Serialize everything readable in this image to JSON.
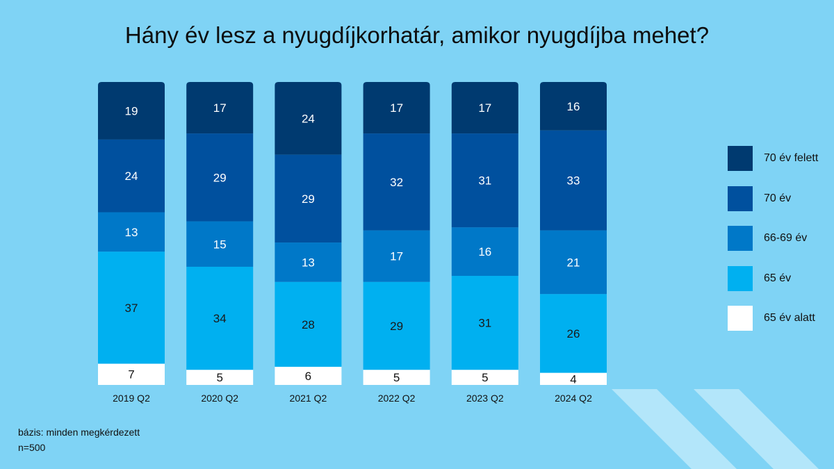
{
  "title": "Hány év lesz a nyugdíjkorhatár, amikor nyugdíjba mehet?",
  "footer": {
    "base": "bázis: minden megkérdezett",
    "n": "n=500"
  },
  "colors": {
    "background": "#7fd3f5",
    "decoration": "#b3e6fa"
  },
  "chart_data": {
    "type": "bar",
    "stacked": true,
    "categories": [
      "2019 Q2",
      "2020 Q2",
      "2021 Q2",
      "2022 Q2",
      "2023 Q2",
      "2024 Q2"
    ],
    "ylim": [
      0,
      100
    ],
    "legend_position": "right",
    "series": [
      {
        "name": "65 év alatt",
        "color": "#ffffff",
        "text_color": "#111111",
        "values": [
          7,
          5,
          6,
          5,
          5,
          4
        ]
      },
      {
        "name": "65 év",
        "color": "#00b0f0",
        "text_color": "#1a1a1a",
        "values": [
          37,
          34,
          28,
          29,
          31,
          26
        ]
      },
      {
        "name": "66-69 év",
        "color": "#0078c8",
        "text_color": "#ffffff",
        "values": [
          13,
          15,
          13,
          17,
          16,
          21
        ]
      },
      {
        "name": "70 év",
        "color": "#00509e",
        "text_color": "#ffffff",
        "values": [
          24,
          29,
          29,
          32,
          31,
          33
        ]
      },
      {
        "name": "70 év felett",
        "color": "#003a70",
        "text_color": "#ffffff",
        "values": [
          19,
          17,
          24,
          17,
          17,
          16
        ]
      }
    ]
  }
}
